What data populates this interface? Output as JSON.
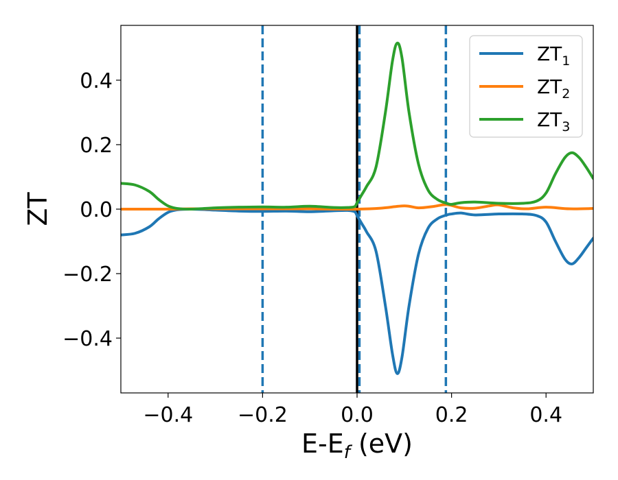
{
  "chart_data": {
    "type": "line",
    "xlabel": {
      "main": "E-E",
      "sub": "f",
      "rest": " (eV)"
    },
    "ylabel": "ZT",
    "xlim": [
      -0.5,
      0.5
    ],
    "ylim": [
      -0.57,
      0.57
    ],
    "xticks": [
      -0.4,
      -0.2,
      0.0,
      0.2,
      0.4
    ],
    "xtick_labels": [
      "−0.4",
      "−0.2",
      "0.0",
      "0.2",
      "0.4"
    ],
    "yticks": [
      -0.4,
      -0.2,
      0.0,
      0.2,
      0.4
    ],
    "ytick_labels": [
      "−0.4",
      "−0.2",
      "0.0",
      "0.2",
      "0.4"
    ],
    "grid": false,
    "legend_position": "top-right",
    "vlines": [
      {
        "x": -0.2,
        "style": "dashed",
        "color": "#1f77b4"
      },
      {
        "x": 0.005,
        "style": "dashed",
        "color": "#1f77b4"
      },
      {
        "x": 0.188,
        "style": "dashed",
        "color": "#1f77b4"
      },
      {
        "x": 0.0,
        "style": "solid",
        "color": "#000000"
      }
    ],
    "series": [
      {
        "name": "ZT",
        "sub": "1",
        "color": "#1f77b4",
        "x": [
          -0.5,
          -0.47,
          -0.44,
          -0.42,
          -0.4,
          -0.38,
          -0.35,
          -0.3,
          -0.25,
          -0.2,
          -0.15,
          -0.1,
          -0.05,
          -0.02,
          -0.005,
          0.0,
          0.01,
          0.02,
          0.04,
          0.06,
          0.075,
          0.085,
          0.095,
          0.11,
          0.13,
          0.15,
          0.17,
          0.19,
          0.2,
          0.22,
          0.25,
          0.3,
          0.35,
          0.38,
          0.4,
          0.42,
          0.44,
          0.455,
          0.47,
          0.485,
          0.5
        ],
        "y": [
          -0.08,
          -0.075,
          -0.055,
          -0.03,
          -0.01,
          -0.002,
          0.0,
          -0.003,
          -0.006,
          -0.007,
          -0.006,
          -0.008,
          -0.005,
          -0.004,
          -0.008,
          -0.02,
          -0.045,
          -0.07,
          -0.13,
          -0.3,
          -0.45,
          -0.51,
          -0.46,
          -0.3,
          -0.14,
          -0.06,
          -0.03,
          -0.018,
          -0.015,
          -0.012,
          -0.018,
          -0.015,
          -0.015,
          -0.02,
          -0.04,
          -0.1,
          -0.155,
          -0.17,
          -0.15,
          -0.12,
          -0.09
        ]
      },
      {
        "name": "ZT",
        "sub": "2",
        "color": "#ff7f0e",
        "x": [
          -0.5,
          -0.45,
          -0.4,
          -0.35,
          -0.3,
          -0.25,
          -0.2,
          -0.15,
          -0.1,
          -0.05,
          0.0,
          0.05,
          0.1,
          0.13,
          0.16,
          0.19,
          0.22,
          0.25,
          0.28,
          0.3,
          0.33,
          0.36,
          0.4,
          0.45,
          0.5
        ],
        "y": [
          0.0,
          0.0,
          0.0,
          0.001,
          0.001,
          0.001,
          0.001,
          0.001,
          0.001,
          0.0,
          0.0,
          0.003,
          0.01,
          0.004,
          0.008,
          0.014,
          0.004,
          0.003,
          0.01,
          0.013,
          0.004,
          0.001,
          0.006,
          0.001,
          0.002
        ]
      },
      {
        "name": "ZT",
        "sub": "3",
        "color": "#2ca02c",
        "x": [
          -0.5,
          -0.47,
          -0.44,
          -0.42,
          -0.4,
          -0.38,
          -0.35,
          -0.3,
          -0.25,
          -0.2,
          -0.15,
          -0.1,
          -0.05,
          -0.02,
          -0.005,
          0.0,
          0.01,
          0.02,
          0.04,
          0.06,
          0.075,
          0.085,
          0.095,
          0.11,
          0.13,
          0.15,
          0.17,
          0.19,
          0.2,
          0.22,
          0.25,
          0.3,
          0.35,
          0.38,
          0.4,
          0.42,
          0.44,
          0.455,
          0.47,
          0.485,
          0.5
        ],
        "y": [
          0.08,
          0.075,
          0.055,
          0.03,
          0.01,
          0.002,
          0.0,
          0.004,
          0.006,
          0.007,
          0.006,
          0.009,
          0.005,
          0.005,
          0.008,
          0.02,
          0.045,
          0.07,
          0.13,
          0.3,
          0.46,
          0.515,
          0.47,
          0.3,
          0.14,
          0.06,
          0.03,
          0.018,
          0.015,
          0.02,
          0.022,
          0.018,
          0.018,
          0.025,
          0.05,
          0.11,
          0.16,
          0.175,
          0.16,
          0.13,
          0.095
        ]
      }
    ]
  }
}
